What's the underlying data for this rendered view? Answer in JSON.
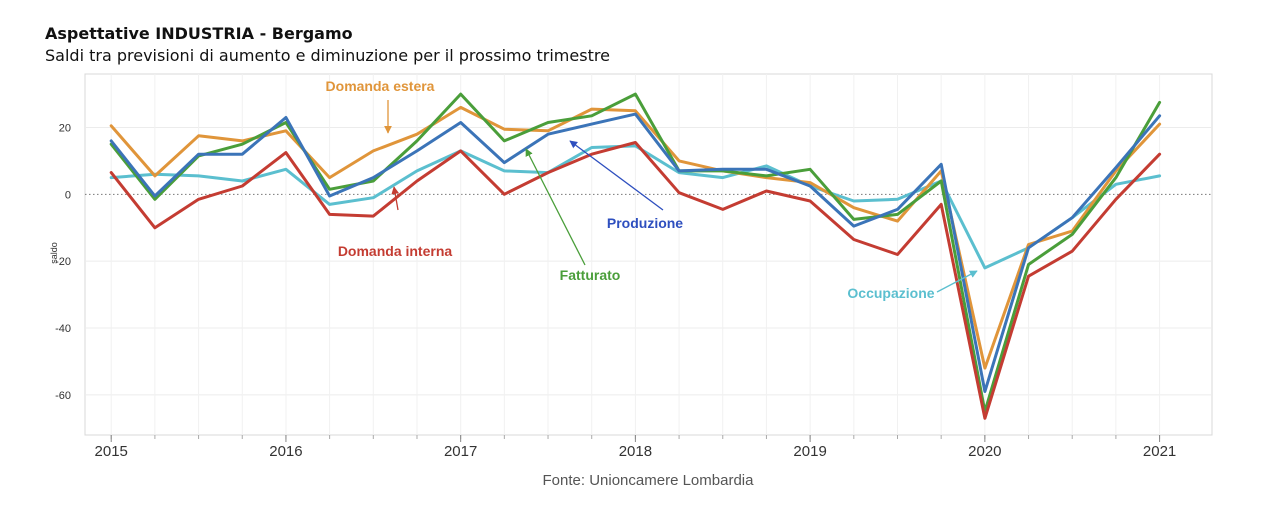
{
  "header": {
    "title": "Aspettative INDUSTRIA - Bergamo",
    "subtitle": "Saldi tra previsioni di aumento e diminuzione per il prossimo trimestre"
  },
  "source": "Fonte: Unioncamere Lombardia",
  "chart_data": {
    "type": "line",
    "ylabel": "saldo",
    "ylim": [
      -72,
      36
    ],
    "y_ticks": [
      20,
      0,
      -20,
      -40,
      -60
    ],
    "x_ticks": [
      "2015",
      "2016",
      "2017",
      "2018",
      "2019",
      "2020",
      "2021"
    ],
    "x": [
      2015.0,
      2015.25,
      2015.5,
      2015.75,
      2016.0,
      2016.25,
      2016.5,
      2016.75,
      2017.0,
      2017.25,
      2017.5,
      2017.75,
      2018.0,
      2018.25,
      2018.5,
      2018.75,
      2019.0,
      2019.25,
      2019.5,
      2019.75,
      2020.0,
      2020.25,
      2020.5,
      2020.75,
      2021.0
    ],
    "zero_line": "dotted",
    "grid": true,
    "series": [
      {
        "name": "Occupazione",
        "color": "#5bbfcf",
        "values": [
          5,
          6,
          5.5,
          4,
          7.5,
          -3,
          -1,
          7,
          13,
          7,
          6.5,
          14,
          14.5,
          6.5,
          5,
          8.5,
          2.5,
          -2,
          -1.5,
          4,
          -22,
          -16,
          -7,
          3,
          5.5
        ]
      },
      {
        "name": "Domanda estera",
        "color": "#e0953a",
        "values": [
          20.5,
          5.5,
          17.5,
          16,
          19,
          5,
          13,
          18,
          26,
          19.5,
          19,
          25.5,
          25,
          10,
          7,
          5,
          3.5,
          -4,
          -8,
          7,
          -52,
          -15,
          -11,
          7,
          21
        ]
      },
      {
        "name": "Fatturato",
        "color": "#4a9e3a",
        "values": [
          15,
          -1.5,
          11.5,
          15,
          21.5,
          1.5,
          4,
          16,
          30,
          16,
          21.5,
          23.5,
          30,
          7,
          7,
          5.5,
          7.5,
          -7.5,
          -6,
          4,
          -65,
          -21,
          -12,
          5,
          27.5
        ]
      },
      {
        "name": "Produzione",
        "color": "#3b74b8",
        "values": [
          16,
          -0.5,
          12,
          12,
          23,
          -0.5,
          5,
          13,
          21.5,
          9.5,
          18,
          21,
          24,
          7,
          7.5,
          7.5,
          2.5,
          -9.5,
          -4.5,
          9,
          -59,
          -16,
          -7,
          8,
          23.5
        ]
      },
      {
        "name": "Domanda interna",
        "color": "#c43c32",
        "values": [
          6.5,
          -10,
          -1.5,
          2.5,
          12.5,
          -6,
          -6.5,
          4,
          13,
          0,
          6.5,
          12,
          15.5,
          0.5,
          -4.5,
          1,
          -2,
          -13.5,
          -18,
          -3,
          -67,
          -24.5,
          -17,
          -1.5,
          12
        ]
      }
    ],
    "annotations": [
      {
        "text": "Domanda estera",
        "color": "#e0953a"
      },
      {
        "text": "Domanda interna",
        "color": "#c43c32"
      },
      {
        "text": "Produzione",
        "color": "#2e4fbf"
      },
      {
        "text": "Fatturato",
        "color": "#4a9e3a"
      },
      {
        "text": "Occupazione",
        "color": "#5bbfcf"
      }
    ]
  }
}
